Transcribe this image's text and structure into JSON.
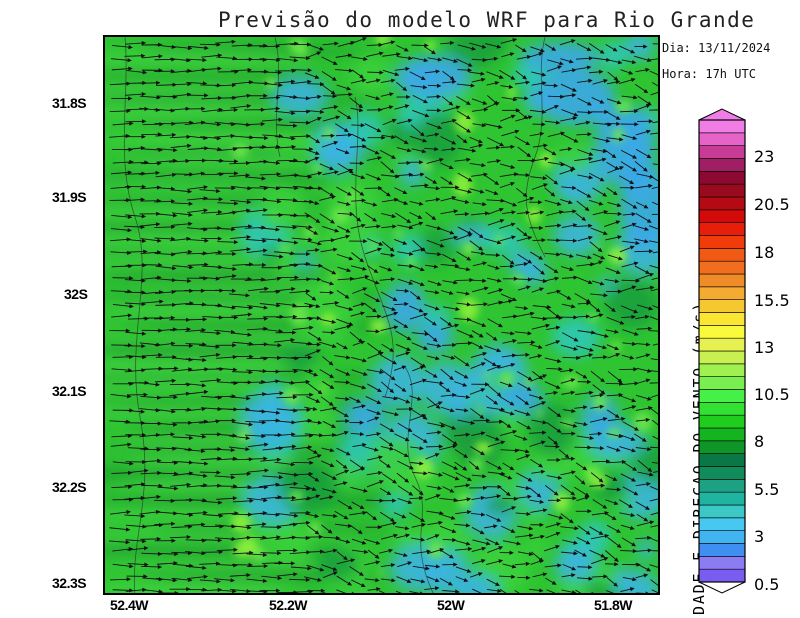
{
  "title": "Previsão do modelo WRF para Rio Grande",
  "info": {
    "date": "Dia: 13/11/2024",
    "time": "Hora: 17h UTC"
  },
  "map": {
    "y_axis_labels": [
      "31.8S",
      "31.9S",
      "32S",
      "32.1S",
      "32.2S",
      "32.3S"
    ],
    "x_axis_labels": [
      "52.4W",
      "52.2W",
      "52W",
      "51.8W"
    ],
    "lat_range": [
      -32.31,
      -31.73
    ],
    "lon_range": [
      -52.44,
      -51.74
    ],
    "field": "wind speed shaded with wind direction vectors",
    "background_color": "#2ec82e"
  },
  "colorbar": {
    "label": "DADE E DIRECAO DO VENTO (m/s)",
    "tick_labels": [
      "23",
      "20.5",
      "18",
      "15.5",
      "13",
      "10.5",
      "8",
      "5.5",
      "3",
      "0.5"
    ],
    "colors": [
      "#7a5cf0",
      "#8c7cf4",
      "#3f8ff0",
      "#3fb4f0",
      "#46c8f0",
      "#3dc8c8",
      "#1fb4a0",
      "#1ea082",
      "#0f8c5a",
      "#0a7846",
      "#0f9628",
      "#13b41e",
      "#1ecd1e",
      "#32e132",
      "#46f046",
      "#78f050",
      "#a0f050",
      "#c8f050",
      "#e6f050",
      "#fafa3c",
      "#fae632",
      "#f5c832",
      "#f5aa32",
      "#f08c28",
      "#f06e1e",
      "#f05a14",
      "#f03c0a",
      "#e61e0a",
      "#d20a0a",
      "#b40a14",
      "#9a0a1e",
      "#8c0a32",
      "#a01e64",
      "#c83c96",
      "#e664c8",
      "#f07de6"
    ]
  }
}
